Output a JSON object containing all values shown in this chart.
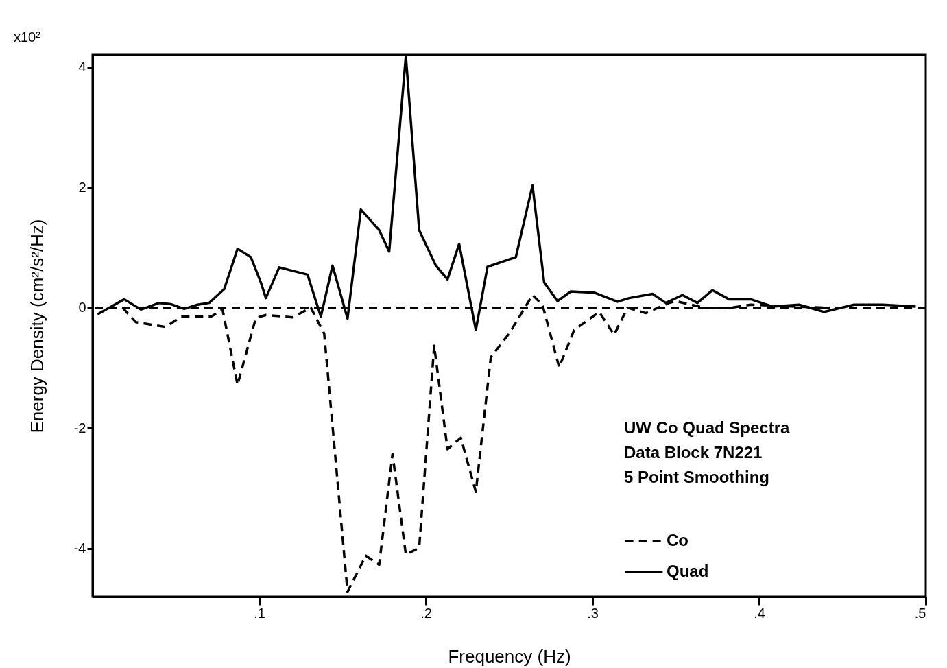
{
  "chart_data": {
    "type": "line",
    "xlabel": "Frequency (Hz)",
    "ylabel": "Energy Density  (cm²/s²/Hz)",
    "annotations": [
      "x10²",
      "UW Co Quad  Spectra",
      "Data Block    7N221",
      "5 Point Smoothing"
    ],
    "xlim": [
      0,
      0.5
    ],
    "ylim": [
      -4.8,
      4.2
    ],
    "xticks": [
      {
        "value": 0.1,
        "label": ".1"
      },
      {
        "value": 0.2,
        "label": ".2"
      },
      {
        "value": 0.3,
        "label": ".3"
      },
      {
        "value": 0.4,
        "label": ".4"
      },
      {
        "value": 0.5,
        "label": ".5"
      }
    ],
    "yticks": [
      -4,
      -2,
      0,
      2,
      4
    ],
    "grid": false,
    "legend": "bottom right",
    "ref_lines": [
      {
        "axis": "y",
        "value": 0,
        "label": null,
        "color": "#000000",
        "line_style": "dashed"
      }
    ],
    "series": [
      {
        "name": "Co",
        "color": "#000000",
        "line_style": "dashed",
        "x": [
          0.018,
          0.026,
          0.044,
          0.053,
          0.071,
          0.078,
          0.087,
          0.098,
          0.104,
          0.12,
          0.131,
          0.139,
          0.153,
          0.164,
          0.172,
          0.18,
          0.188,
          0.196,
          0.205,
          0.213,
          0.221,
          0.23,
          0.239,
          0.25,
          0.264,
          0.27,
          0.28,
          0.289,
          0.304,
          0.313,
          0.321,
          0.332,
          0.346,
          0.35,
          0.367,
          0.383,
          0.395,
          0.439
        ],
        "values": [
          0,
          -0.24,
          -0.32,
          -0.15,
          -0.15,
          -0.03,
          -1.28,
          -0.17,
          -0.12,
          -0.16,
          0,
          -0.43,
          -4.72,
          -4.12,
          -4.27,
          -2.43,
          -4.1,
          -3.99,
          -0.63,
          -2.35,
          -2.16,
          -3.06,
          -0.82,
          -0.43,
          0.21,
          0.05,
          -0.99,
          -0.37,
          -0.07,
          -0.45,
          0,
          -0.09,
          0.08,
          0.11,
          0,
          0,
          0.05,
          0
        ]
      },
      {
        "name": "Quad",
        "color": "#000000",
        "line_style": "solid",
        "x": [
          0.003,
          0.019,
          0.029,
          0.04,
          0.047,
          0.055,
          0.063,
          0.07,
          0.079,
          0.087,
          0.095,
          0.101,
          0.104,
          0.112,
          0.129,
          0.137,
          0.144,
          0.153,
          0.161,
          0.172,
          0.178,
          0.188,
          0.196,
          0.206,
          0.213,
          0.22,
          0.23,
          0.237,
          0.254,
          0.264,
          0.271,
          0.279,
          0.287,
          0.301,
          0.315,
          0.322,
          0.336,
          0.344,
          0.354,
          0.363,
          0.372,
          0.382,
          0.395,
          0.408,
          0.424,
          0.439,
          0.457,
          0.474,
          0.494
        ],
        "values": [
          -0.11,
          0.14,
          -0.03,
          0.08,
          0.06,
          -0.02,
          0.05,
          0.08,
          0.31,
          0.98,
          0.84,
          0.42,
          0.16,
          0.67,
          0.55,
          -0.15,
          0.7,
          -0.18,
          1.63,
          1.29,
          0.93,
          4.18,
          1.29,
          0.7,
          0.47,
          1.06,
          -0.37,
          0.68,
          0.84,
          2.03,
          0.42,
          0.11,
          0.27,
          0.25,
          0.1,
          0.16,
          0.23,
          0.08,
          0.21,
          0.08,
          0.29,
          0.14,
          0.14,
          0.02,
          0.05,
          -0.07,
          0.05,
          0.05,
          0.02
        ]
      }
    ]
  }
}
